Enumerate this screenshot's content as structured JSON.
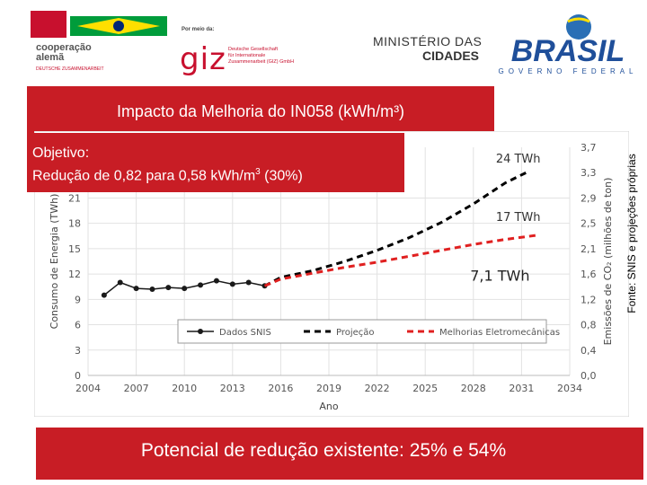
{
  "header": {
    "coop_line1": "cooperação",
    "coop_line2": "alemã",
    "coop_line3": "DEUTSCHE ZUSAMMENARBEIT",
    "giz_by": "Por meio da:",
    "giz_mark": "giz",
    "giz_line1": "Deutsche Gesellschaft",
    "giz_line2": "für Internationale",
    "giz_line3": "Zusammenarbeit (GIZ) GmbH",
    "ministry_line1": "MINISTÉRIO DAS",
    "ministry_line2": "CIDADES",
    "brasil_word": "BRASIL",
    "brasil_sub": "GOVERNO FEDERAL"
  },
  "slide": {
    "title": "Impacto da  Melhoria do IN058 (kWh/m³)",
    "objective_label": "Objetivo:",
    "objective_text": "Redução de 0,82 para 0,58 kWh/m",
    "objective_sup": "3",
    "objective_suffix": " (30%)",
    "bottom_text": "Potencial de redução existente: 25% e 54%",
    "source": "Fonte: SNIS e projeções próprias"
  },
  "colors": {
    "banner": "#c81d25",
    "sni": "#1a1a1a",
    "projection": "#000000",
    "improvements": "#e02020"
  },
  "chart_data": {
    "type": "line",
    "title": "",
    "xlabel": "Ano",
    "ylabel_left": "Consumo de Energia (TWh)",
    "ylabel_right": "Emissões de CO₂ (milhões de ton)",
    "xlim": [
      2004,
      2034
    ],
    "ylim_left": [
      0,
      27
    ],
    "ylim_right": [
      0.0,
      3.7
    ],
    "xticks": [
      "2004",
      "2007",
      "2010",
      "2013",
      "2016",
      "2019",
      "2022",
      "2025",
      "2028",
      "2031",
      "2034"
    ],
    "yticks_left": [
      "0",
      "3",
      "6",
      "9",
      "12",
      "15",
      "18",
      "21"
    ],
    "yticks_right": [
      "0,0",
      "0,4",
      "0,8",
      "1,2",
      "1,6",
      "2,1",
      "2,5",
      "2,9",
      "3,3",
      "3,7"
    ],
    "series": [
      {
        "name": "Dados SNIS",
        "style": "solid-markers",
        "x": [
          2005,
          2006,
          2007,
          2008,
          2009,
          2010,
          2011,
          2012,
          2013,
          2014,
          2015
        ],
        "y": [
          9.5,
          11.0,
          10.3,
          10.2,
          10.4,
          10.3,
          10.7,
          11.2,
          10.8,
          11.0,
          10.6
        ]
      },
      {
        "name": "Projeção",
        "style": "dashed",
        "x": [
          2015,
          2016,
          2018,
          2020,
          2022,
          2024,
          2026,
          2028,
          2030,
          2031.5
        ],
        "y": [
          10.6,
          11.6,
          12.4,
          13.5,
          14.8,
          16.3,
          18.1,
          20.3,
          22.8,
          24.2
        ]
      },
      {
        "name": "Melhorias Eletromecânicas",
        "style": "red-dashed",
        "x": [
          2015,
          2016,
          2018,
          2020,
          2022,
          2024,
          2026,
          2028,
          2030,
          2032
        ],
        "y": [
          10.6,
          11.4,
          12.1,
          12.8,
          13.4,
          14.1,
          14.8,
          15.5,
          16.1,
          16.6
        ]
      }
    ],
    "annotations": [
      "24 TWh",
      "17 TWh",
      "7,1 TWh"
    ],
    "legend_position": "bottom"
  }
}
